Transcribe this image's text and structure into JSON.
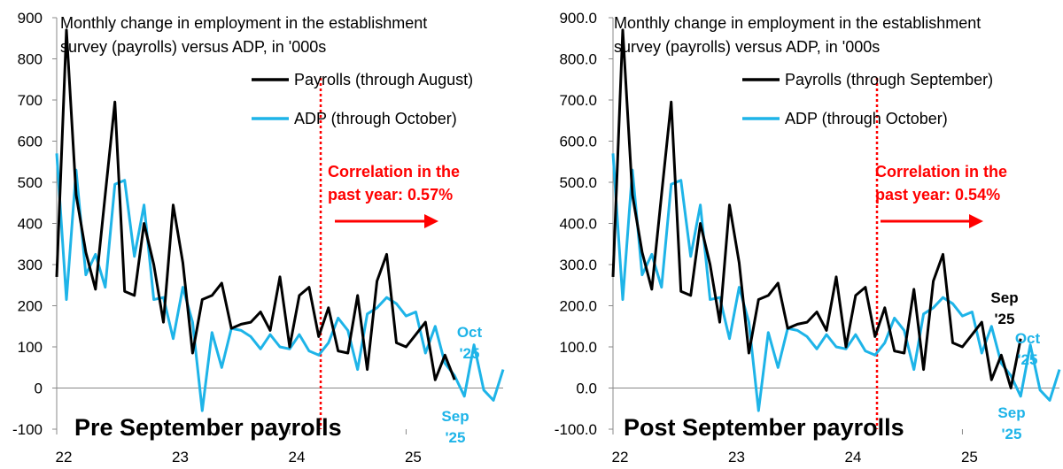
{
  "colors": {
    "payrolls": "#000000",
    "adp": "#1eb4e8",
    "marker": "#ff0000"
  },
  "chart_data": [
    {
      "type": "line",
      "title": "Monthly change in employment in the establishment survey (payrolls) versus ADP, in '000s",
      "panel_label": "Pre September payrolls",
      "correlation_text": [
        "Correlation in the",
        "past year: 0.57%"
      ],
      "ylim": [
        -100,
        900
      ],
      "y_ticks": [
        -100,
        0,
        100,
        200,
        300,
        400,
        500,
        600,
        700,
        800,
        900
      ],
      "y_tick_labels": [
        "-100",
        "0",
        "100",
        "200",
        "300",
        "400",
        "500",
        "600",
        "700",
        "800",
        "900"
      ],
      "x_tick_labels": [
        "22",
        "23",
        "24",
        "25"
      ],
      "x_ticks": [
        0,
        12,
        24,
        36
      ],
      "xlim": [
        0,
        46
      ],
      "legend_position": "top-right",
      "marker_x": 27.2,
      "series": [
        {
          "name": "Payrolls (through August)",
          "color_key": "payrolls",
          "values": [
            270,
            870,
            470,
            330,
            240,
            470,
            695,
            235,
            225,
            400,
            300,
            160,
            445,
            305,
            85,
            215,
            225,
            255,
            145,
            155,
            160,
            185,
            140,
            270,
            100,
            225,
            245,
            125,
            195,
            90,
            85,
            225,
            45,
            260,
            325,
            110,
            100,
            130,
            160,
            20,
            80,
            20
          ]
        },
        {
          "name": "ADP (through October)",
          "color_key": "adp",
          "values": [
            570,
            215,
            530,
            275,
            325,
            245,
            495,
            505,
            320,
            445,
            215,
            220,
            120,
            245,
            160,
            -55,
            135,
            50,
            145,
            140,
            125,
            95,
            130,
            100,
            95,
            130,
            90,
            80,
            110,
            170,
            140,
            45,
            180,
            195,
            220,
            205,
            175,
            185,
            85,
            150,
            60,
            30,
            -20,
            105,
            -5,
            -30,
            45
          ]
        }
      ],
      "end_labels": [
        {
          "text": [
            "Oct",
            "'25"
          ],
          "color_key": "adp"
        },
        {
          "text": [
            "Sep",
            "'25"
          ],
          "color_key": "adp"
        }
      ]
    },
    {
      "type": "line",
      "title": "Monthly change in employment in the establishment survey (payrolls) versus ADP, in '000s",
      "panel_label": "Post September payrolls",
      "correlation_text": [
        "Correlation in the",
        "past year: 0.54%"
      ],
      "ylim": [
        -100,
        900
      ],
      "y_ticks": [
        -100,
        0,
        100,
        200,
        300,
        400,
        500,
        600,
        700,
        800,
        900
      ],
      "y_tick_labels": [
        "-100.0",
        "0.0",
        "100.0",
        "200.0",
        "300.0",
        "400.0",
        "500.0",
        "600.0",
        "700.0",
        "800.0",
        "900.0"
      ],
      "x_tick_labels": [
        "22",
        "23",
        "24",
        "25"
      ],
      "x_ticks": [
        0,
        12,
        24,
        36
      ],
      "xlim": [
        0,
        46
      ],
      "legend_position": "top-right",
      "marker_x": 27.2,
      "series": [
        {
          "name": "Payrolls (through September)",
          "color_key": "payrolls",
          "values": [
            270,
            870,
            470,
            330,
            240,
            470,
            695,
            235,
            225,
            400,
            300,
            160,
            445,
            305,
            85,
            215,
            225,
            255,
            145,
            155,
            160,
            185,
            140,
            270,
            100,
            225,
            245,
            125,
            195,
            90,
            85,
            240,
            45,
            260,
            325,
            110,
            100,
            130,
            160,
            20,
            80,
            0,
            120
          ]
        },
        {
          "name": "ADP (through October)",
          "color_key": "adp",
          "values": [
            570,
            215,
            530,
            275,
            325,
            245,
            495,
            505,
            320,
            445,
            215,
            220,
            120,
            245,
            160,
            -55,
            135,
            50,
            145,
            140,
            125,
            95,
            130,
            100,
            95,
            130,
            90,
            80,
            110,
            170,
            140,
            45,
            180,
            195,
            220,
            205,
            175,
            185,
            85,
            150,
            60,
            30,
            -20,
            105,
            -5,
            -30,
            45
          ]
        }
      ],
      "end_labels": [
        {
          "text": [
            "Sep",
            "'25"
          ],
          "color_key": "payrolls"
        },
        {
          "text": [
            "Oct",
            "'25"
          ],
          "color_key": "adp"
        },
        {
          "text": [
            "Sep",
            "'25"
          ],
          "color_key": "adp"
        }
      ]
    }
  ]
}
